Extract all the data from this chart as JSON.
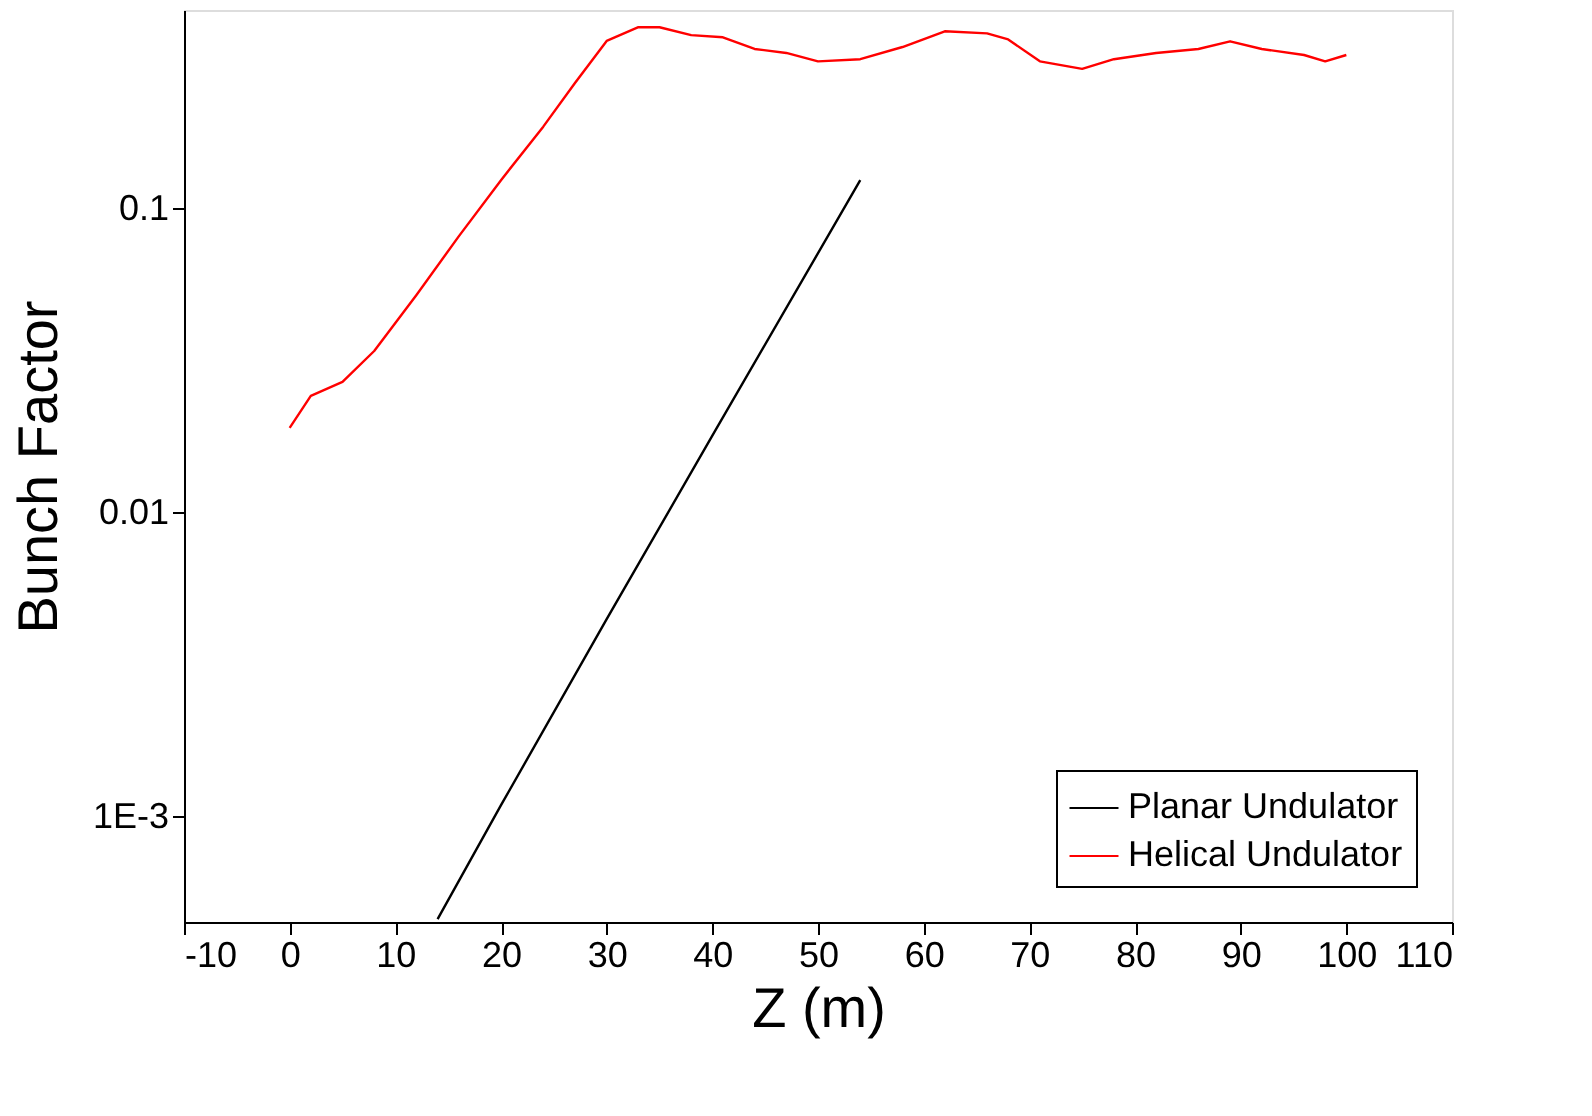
{
  "chart_data": {
    "type": "line",
    "xlabel": "Z (m)",
    "ylabel": "Bunch Factor",
    "log": "y",
    "grid": false,
    "legend": "bottom right",
    "line_style": "solid",
    "marker": "none",
    "xlim": [
      -10,
      110
    ],
    "xticks": [
      -10,
      0,
      10,
      20,
      30,
      40,
      50,
      60,
      70,
      80,
      90,
      100,
      110
    ],
    "ylim": [
      0.00045,
      0.45
    ],
    "yticks": [
      {
        "value": 0.001,
        "label": "1E-3"
      },
      0.01,
      0.1
    ],
    "series": [
      {
        "name": "Planar Undulator",
        "color": "#000000",
        "x": [
          14,
          20,
          30,
          40,
          54
        ],
        "values": [
          0.00046,
          0.00109,
          0.00446,
          0.0179,
          0.124
        ]
      },
      {
        "name": "Helical Undulator",
        "color": "#ff0000",
        "x": [
          0,
          2,
          5,
          8,
          12,
          16,
          20,
          24,
          27,
          30,
          33,
          35,
          38,
          41,
          44,
          47,
          50,
          54,
          58,
          62,
          66,
          68,
          71,
          75,
          78,
          82,
          86,
          89,
          92,
          96,
          98,
          100
        ],
        "values": [
          0.019,
          0.0242,
          0.0269,
          0.034,
          0.052,
          0.081,
          0.124,
          0.186,
          0.259,
          0.356,
          0.395,
          0.395,
          0.372,
          0.366,
          0.335,
          0.325,
          0.305,
          0.31,
          0.34,
          0.383,
          0.377,
          0.36,
          0.305,
          0.288,
          0.31,
          0.325,
          0.335,
          0.355,
          0.335,
          0.32,
          0.305,
          0.32
        ]
      }
    ]
  }
}
